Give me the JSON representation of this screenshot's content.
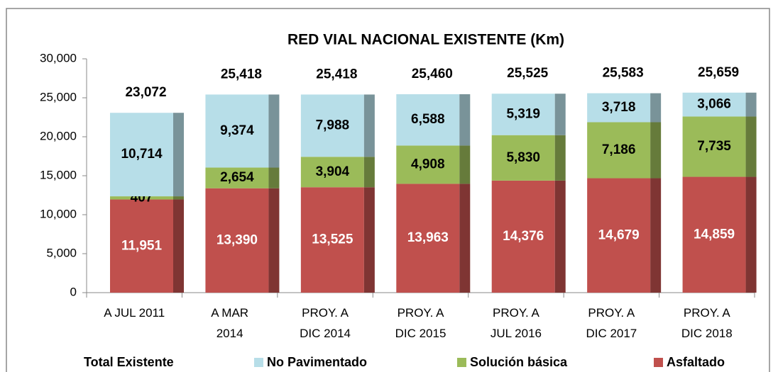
{
  "chart_data": {
    "type": "stacked_bar",
    "title": "RED VIAL NACIONAL EXISTENTE (Km)",
    "categories": [
      [
        "A JUL 2011"
      ],
      [
        "A MAR",
        "2014"
      ],
      [
        "PROY. A",
        "DIC 2014"
      ],
      [
        "PROY. A",
        "DIC 2015"
      ],
      [
        "PROY. A",
        "JUL 2016"
      ],
      [
        "PROY. A",
        "DIC 2017"
      ],
      [
        "PROY. A",
        "DIC 2018"
      ]
    ],
    "series": [
      {
        "name": "Asfaltado",
        "color": "#c0504d",
        "values": [
          11951,
          13390,
          13525,
          13963,
          14376,
          14679,
          14859
        ],
        "value_labels": [
          "11,951",
          "13,390",
          "13,525",
          "13,963",
          "14,376",
          "14,679",
          "14,859"
        ]
      },
      {
        "name": "Solución básica",
        "color": "#9bbb59",
        "values": [
          407,
          2654,
          3904,
          4908,
          5830,
          7186,
          7735
        ],
        "value_labels": [
          "407",
          "2,654",
          "3,904",
          "4,908",
          "5,830",
          "7,186",
          "7,735"
        ]
      },
      {
        "name": "No Pavimentado",
        "color": "#b7dee8",
        "values": [
          10714,
          9374,
          7988,
          6588,
          5319,
          3718,
          3066
        ],
        "value_labels": [
          "10,714",
          "9,374",
          "7,988",
          "6,588",
          "5,319",
          "3,718",
          "3,066"
        ]
      }
    ],
    "total": {
      "name": "Total Existente",
      "values": [
        23072,
        25418,
        25418,
        25460,
        25525,
        25583,
        25659
      ],
      "value_labels": [
        "23,072",
        "25,418",
        "25,418",
        "25,460",
        "25,525",
        "25,583",
        "25,659"
      ]
    },
    "ylim": [
      0,
      30000
    ],
    "yticks": [
      0,
      {
        "value": 5000,
        "label": "5,000"
      },
      {
        "value": 10000,
        "label": "10,000"
      },
      {
        "value": 15000,
        "label": "15,000"
      },
      {
        "value": 20000,
        "label": "20,000"
      },
      {
        "value": 25000,
        "label": "25,000"
      },
      {
        "value": 30000,
        "label": "30,000"
      }
    ],
    "grid": false
  }
}
